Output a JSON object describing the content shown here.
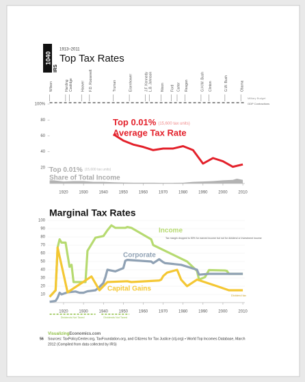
{
  "header": {
    "icon_number": "1040",
    "icon_agency": "IRS",
    "years": "1913–2011",
    "title": "Top Tax Rates"
  },
  "chart_data": [
    {
      "type": "line",
      "presidents": [
        {
          "name": "Wilson",
          "start": 1913
        },
        {
          "name": "Harding",
          "start": 1921
        },
        {
          "name": "Coolidge",
          "start": 1923
        },
        {
          "name": "Hoover",
          "start": 1929
        },
        {
          "name": "F.D. Roosevelt",
          "start": 1933
        },
        {
          "name": "Truman",
          "start": 1945
        },
        {
          "name": "Eisenhower",
          "start": 1953
        },
        {
          "name": "J.F. Kennedy",
          "start": 1961
        },
        {
          "name": "L.B. Johnson",
          "start": 1963
        },
        {
          "name": "Nixon",
          "start": 1969
        },
        {
          "name": "Ford",
          "start": 1974
        },
        {
          "name": "Carter",
          "start": 1977
        },
        {
          "name": "Reagan",
          "start": 1981
        },
        {
          "name": "G.H.W. Bush",
          "start": 1989
        },
        {
          "name": "Clinton",
          "start": 1993
        },
        {
          "name": "G.W. Bush",
          "start": 2001
        },
        {
          "name": "Obama",
          "start": 2009
        }
      ],
      "strip_labels": [
        "Military Budget",
        "GDP Contractions"
      ],
      "xlim": [
        1913,
        2011
      ],
      "xticks": [
        1920,
        1930,
        1940,
        1950,
        1960,
        1970,
        1980,
        1990,
        2000,
        2010
      ],
      "ylim": [
        0,
        100
      ],
      "yticks": [
        20,
        40,
        60,
        80,
        {
          "value": 100,
          "label": "100%"
        }
      ],
      "series": [
        {
          "group": "Top 0.01%",
          "note": "(15,600 tax units)",
          "name": "Average Tax Rate",
          "color": "#e3202a",
          "style": "line",
          "x": [
            1945,
            1950,
            1955,
            1960,
            1965,
            1970,
            1975,
            1980,
            1985,
            1990,
            1995,
            2000,
            2005,
            2010
          ],
          "values": [
            62,
            54,
            49,
            46,
            42,
            44,
            44,
            47,
            42,
            25,
            32,
            28,
            21,
            24
          ]
        },
        {
          "group": "Top 0.01%",
          "note": "(15,600 tax units)",
          "name": "Share of Total Income",
          "color": "#b3b3b3",
          "style": "area",
          "x": [
            1913,
            1915,
            1920,
            1925,
            1930,
            1935,
            1940,
            1945,
            1950,
            1955,
            1960,
            1965,
            1970,
            1975,
            1980,
            1985,
            1990,
            1995,
            2000,
            2005,
            2007,
            2010
          ],
          "values": [
            4,
            4,
            2.5,
            3,
            3,
            2,
            2,
            1.5,
            1.2,
            1,
            1,
            1,
            0.8,
            0.8,
            1,
            2,
            2.5,
            3,
            4,
            4.5,
            6,
            4.5
          ]
        }
      ]
    },
    {
      "type": "line",
      "title": "Marginal Tax Rates",
      "xlim": [
        1913,
        2011
      ],
      "xticks": [
        1920,
        1930,
        1940,
        1950,
        1960,
        1970,
        1980,
        1990,
        2000,
        2010
      ],
      "ylim": [
        0,
        100
      ],
      "yticks": [
        10,
        20,
        30,
        40,
        50,
        60,
        70,
        80,
        90,
        100
      ],
      "series": [
        {
          "name": "Income",
          "color": "#b6da70",
          "x": [
            1913,
            1916,
            1917,
            1918,
            1919,
            1921,
            1922,
            1923,
            1924,
            1925,
            1931,
            1932,
            1936,
            1940,
            1942,
            1944,
            1946,
            1951,
            1952,
            1954,
            1964,
            1965,
            1982,
            1987,
            1988,
            1991,
            1993,
            2001,
            2002,
            2003,
            2010
          ],
          "values": [
            7,
            15,
            67,
            77,
            73,
            73,
            58,
            43.5,
            46,
            25,
            25,
            63,
            79,
            81,
            88,
            94,
            91,
            91,
            92,
            91,
            77,
            70,
            50,
            38.5,
            28,
            31,
            39.6,
            39.1,
            38.6,
            35,
            35
          ]
        },
        {
          "name": "Corporate",
          "color": "#8fa1b4",
          "x": [
            1913,
            1916,
            1917,
            1918,
            1919,
            1922,
            1926,
            1928,
            1930,
            1932,
            1936,
            1938,
            1940,
            1941,
            1942,
            1946,
            1950,
            1951,
            1952,
            1964,
            1965,
            1968,
            1970,
            1971,
            1979,
            1987,
            1988,
            1993,
            2010
          ],
          "values": [
            1,
            2,
            6,
            12,
            10,
            12.5,
            13.5,
            12,
            12,
            13.75,
            15,
            19,
            24,
            31,
            40,
            38,
            42,
            51,
            52,
            50,
            48,
            52.8,
            49.2,
            48,
            46,
            40,
            34,
            35,
            35
          ]
        },
        {
          "name": "Capital Gains",
          "color": "#f4c733",
          "x": [
            1913,
            1916,
            1917,
            1922,
            1934,
            1938,
            1942,
            1952,
            1954,
            1968,
            1969,
            1970,
            1972,
            1977,
            1979,
            1982,
            1987,
            1997,
            2003,
            2010
          ],
          "values": [
            7,
            15,
            67,
            12.5,
            31.8,
            15,
            25,
            26,
            25,
            26.9,
            27.9,
            32.2,
            36.5,
            39.9,
            28,
            20,
            28,
            20,
            15,
            15
          ]
        }
      ],
      "annotations": [
        "Tax margin dropped to 50% for earned income but not for dividend or investment income",
        "Dividends Not Taxed",
        "Dividends Not Taxed",
        "Dividend tax"
      ],
      "dividend_periods": [
        [
          1913,
          1936
        ],
        [
          1939,
          1953
        ]
      ]
    }
  ],
  "footer": {
    "site_part1": "Visualizing",
    "site_part2": "Economics.com",
    "page_number": "56",
    "source_lines": [
      "Sources: TaxPolicyCenter.org, TaxFoundation.org, and Citizens for Tax Justice (ctj.org) • World Top Incomes Database, March",
      "2012 (Compiled from data collected by IRS)"
    ]
  }
}
